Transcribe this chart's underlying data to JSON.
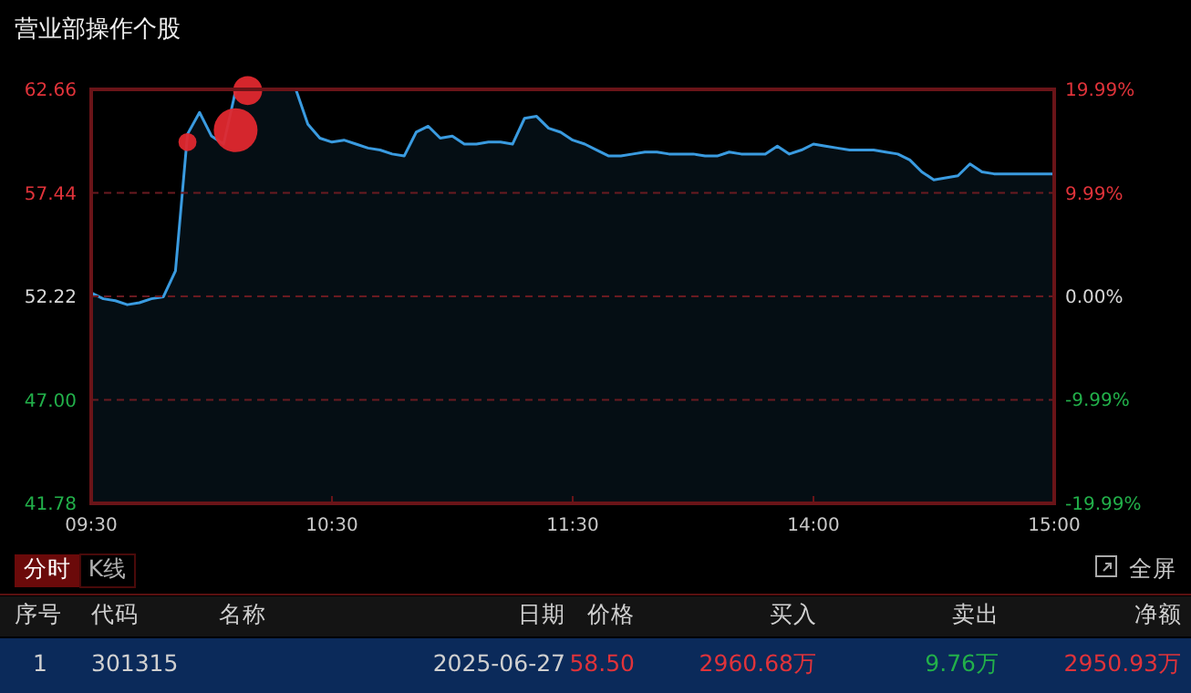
{
  "chart_data": {
    "type": "area",
    "title": "营业部操作个股",
    "categories": [
      "09:30",
      null,
      null,
      null,
      null,
      null,
      null,
      null,
      null,
      null,
      null,
      null,
      null,
      null,
      null,
      null,
      null,
      null,
      null,
      null,
      "10:30",
      null,
      null,
      null,
      null,
      null,
      null,
      null,
      null,
      null,
      null,
      null,
      null,
      null,
      null,
      null,
      null,
      null,
      null,
      null,
      "11:30",
      null,
      null,
      null,
      null,
      null,
      null,
      null,
      null,
      null,
      null,
      null,
      null,
      null,
      null,
      null,
      null,
      null,
      null,
      null,
      "14:00",
      null,
      null,
      null,
      null,
      null,
      null,
      null,
      null,
      null,
      null,
      null,
      null,
      null,
      null,
      null,
      null,
      null,
      null,
      null,
      "15:00"
    ],
    "series": [
      {
        "color": "#3a9be0",
        "values": [
          52.4,
          52.1,
          52.0,
          51.8,
          51.9,
          52.1,
          52.2,
          53.5,
          60.4,
          61.5,
          60.3,
          59.9,
          62.6,
          62.66,
          62.66,
          62.66,
          62.66,
          62.66,
          60.9,
          60.2,
          60.0,
          60.1,
          59.9,
          59.7,
          59.6,
          59.4,
          59.3,
          60.5,
          60.8,
          60.2,
          60.3,
          59.9,
          59.9,
          60.0,
          60.0,
          59.9,
          61.2,
          61.3,
          60.7,
          60.5,
          60.1,
          59.9,
          59.6,
          59.3,
          59.3,
          59.4,
          59.5,
          59.5,
          59.4,
          59.4,
          59.4,
          59.3,
          59.3,
          59.5,
          59.4,
          59.4,
          59.4,
          59.8,
          59.4,
          59.6,
          59.9,
          59.8,
          59.7,
          59.6,
          59.6,
          59.6,
          59.5,
          59.4,
          59.1,
          58.5,
          58.1,
          58.2,
          58.3,
          58.9,
          58.5,
          58.4,
          58.4,
          58.4,
          58.4,
          58.4,
          58.4
        ]
      },
      {
        "type": "bubble",
        "color": "#e0282e",
        "values": [
          null,
          null,
          null,
          null,
          null,
          null,
          null,
          null,
          60.0,
          null,
          null,
          null,
          60.6,
          62.6,
          null,
          null,
          null,
          null,
          null,
          null,
          null,
          null,
          null,
          null,
          null,
          null,
          null,
          null,
          null,
          null,
          null,
          null,
          null,
          null,
          null,
          null,
          null,
          null,
          null,
          null,
          null,
          null,
          null,
          null,
          null,
          null,
          null,
          null,
          null,
          null,
          null,
          null,
          null,
          null,
          null,
          null,
          null,
          null,
          null,
          null,
          null,
          null,
          null,
          null,
          null,
          null,
          null,
          null,
          null,
          null,
          null,
          null,
          null,
          null,
          null,
          null,
          null,
          null,
          null,
          null,
          null
        ],
        "sizes": [
          null,
          null,
          null,
          null,
          null,
          null,
          null,
          null,
          0.17,
          null,
          null,
          null,
          1,
          0.44,
          null,
          null,
          null,
          null,
          null,
          null,
          null,
          null,
          null,
          null,
          null,
          null,
          null,
          null,
          null,
          null,
          null,
          null,
          null,
          null,
          null,
          null,
          null,
          null,
          null,
          null,
          null,
          null,
          null,
          null,
          null,
          null,
          null,
          null,
          null,
          null,
          null,
          null,
          null,
          null,
          null,
          null,
          null,
          null,
          null,
          null,
          null,
          null,
          null,
          null,
          null,
          null,
          null,
          null,
          null,
          null,
          null,
          null,
          null,
          null,
          null,
          null,
          null,
          null,
          null,
          null,
          null
        ]
      }
    ],
    "ylim": [
      41.78,
      62.66
    ],
    "yticks": [
      {
        "value": 41.78,
        "label": "41.78"
      },
      {
        "value": 47,
        "label": "47.00"
      },
      {
        "value": 52.22,
        "label": "52.22"
      },
      {
        "value": 57.44,
        "label": "57.44"
      },
      {
        "value": 62.66,
        "label": "62.66"
      }
    ],
    "y2lim": [
      -19.99,
      19.99
    ],
    "y2ticks": [
      {
        "value": -19.99,
        "label": "-19.99%"
      },
      {
        "value": -9.99,
        "label": "-9.99%"
      },
      {
        "value": 0,
        "label": "0.00%"
      },
      {
        "value": 9.99,
        "label": "9.99%"
      },
      {
        "value": 19.99,
        "label": "19.99%"
      }
    ],
    "grid": "y",
    "annotations": [
      "分时",
      "K线",
      "全屏",
      "序号",
      "代码",
      "名称",
      "日期",
      "价格",
      "买入",
      "卖出",
      "净额",
      "1",
      "301315",
      "2025-06-27",
      "58.50",
      "2960.68万",
      "9.76万",
      "2950.93万"
    ]
  }
}
